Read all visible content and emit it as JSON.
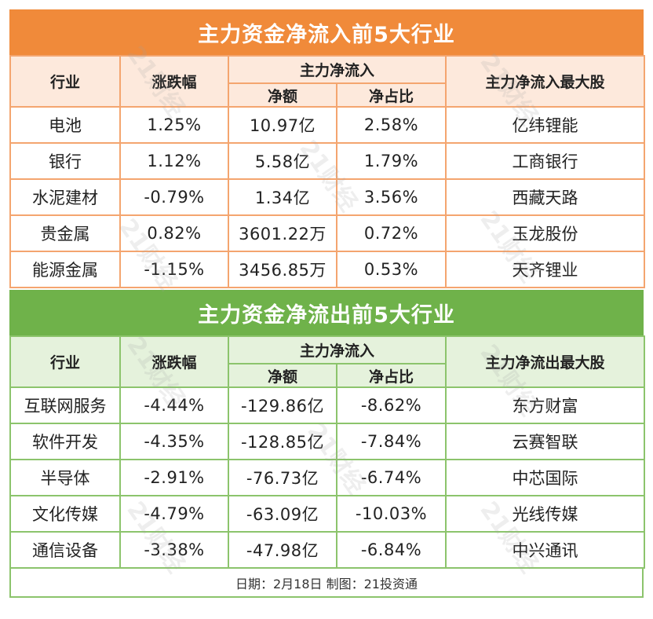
{
  "inflow": {
    "title": "主力资金净流入前5大行业",
    "headers": {
      "industry": "行业",
      "change": "涨跌幅",
      "group": "主力净流入",
      "net": "净额",
      "ratio": "净占比",
      "top_stock": "主力净流入最大股"
    },
    "rows": [
      {
        "industry": "电池",
        "change": "1.25%",
        "net": "10.97亿",
        "ratio": "2.58%",
        "stock": "亿纬锂能"
      },
      {
        "industry": "银行",
        "change": "1.12%",
        "net": "5.58亿",
        "ratio": "1.79%",
        "stock": "工商银行"
      },
      {
        "industry": "水泥建材",
        "change": "-0.79%",
        "net": "1.34亿",
        "ratio": "3.56%",
        "stock": "西藏天路"
      },
      {
        "industry": "贵金属",
        "change": "0.82%",
        "net": "3601.22万",
        "ratio": "0.72%",
        "stock": "玉龙股份"
      },
      {
        "industry": "能源金属",
        "change": "-1.15%",
        "net": "3456.85万",
        "ratio": "0.53%",
        "stock": "天齐锂业"
      }
    ]
  },
  "outflow": {
    "title": "主力资金净流出前5大行业",
    "headers": {
      "industry": "行业",
      "change": "涨跌幅",
      "group": "主力净流入",
      "net": "净额",
      "ratio": "净占比",
      "top_stock": "主力净流出最大股"
    },
    "rows": [
      {
        "industry": "互联网服务",
        "change": "-4.44%",
        "net": "-129.86亿",
        "ratio": "-8.62%",
        "stock": "东方财富"
      },
      {
        "industry": "软件开发",
        "change": "-4.35%",
        "net": "-128.85亿",
        "ratio": "-7.84%",
        "stock": "云赛智联"
      },
      {
        "industry": "半导体",
        "change": "-2.91%",
        "net": "-76.73亿",
        "ratio": "-6.74%",
        "stock": "中芯国际"
      },
      {
        "industry": "文化传媒",
        "change": "-4.79%",
        "net": "-63.09亿",
        "ratio": "-10.03%",
        "stock": "光线传媒"
      },
      {
        "industry": "通信设备",
        "change": "-3.38%",
        "net": "-47.98亿",
        "ratio": "-6.84%",
        "stock": "中兴通讯"
      }
    ]
  },
  "footer": "日期：2月18日 制图：21投资通",
  "watermark": "21财经",
  "colors": {
    "inflow_accent": "#f08a3a",
    "outflow_accent": "#6fb24a"
  }
}
